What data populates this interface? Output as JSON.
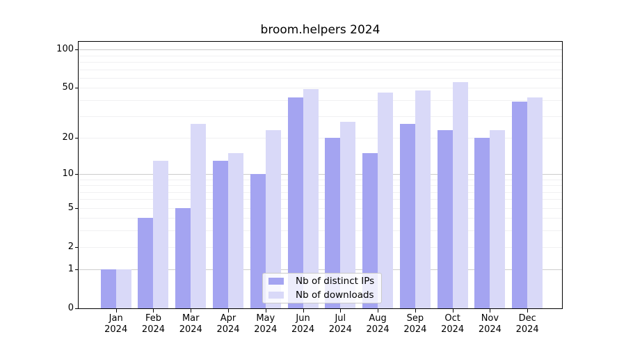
{
  "chart_data": {
    "type": "bar",
    "title": "broom.helpers 2024",
    "categories": [
      "Jan",
      "Feb",
      "Mar",
      "Apr",
      "May",
      "Jun",
      "Jul",
      "Aug",
      "Sep",
      "Oct",
      "Nov",
      "Dec"
    ],
    "year_label": "2024",
    "series": [
      {
        "name": "Nb of distinct IPs",
        "color": "#a4a4f1",
        "values": [
          1,
          4,
          5,
          13,
          10,
          42,
          20,
          15,
          26,
          23,
          20,
          39
        ]
      },
      {
        "name": "Nb of downloads",
        "color": "#d9d9f8",
        "values": [
          1,
          13,
          26,
          15,
          23,
          49,
          27,
          46,
          48,
          56,
          23,
          42
        ]
      }
    ],
    "y_scale": "log1p",
    "y_max": 115.5,
    "y_tick_values": [
      100,
      50,
      20,
      10,
      5,
      2,
      1,
      0
    ],
    "y_major_gridlines": [
      1,
      10,
      100
    ],
    "y_minor_gridlines": [
      2,
      3,
      4,
      5,
      6,
      7,
      8,
      9,
      20,
      30,
      40,
      50,
      60,
      70,
      80,
      90
    ],
    "xlabel": "",
    "ylabel": "",
    "grid": "on",
    "legend_position": "bottom-center"
  }
}
